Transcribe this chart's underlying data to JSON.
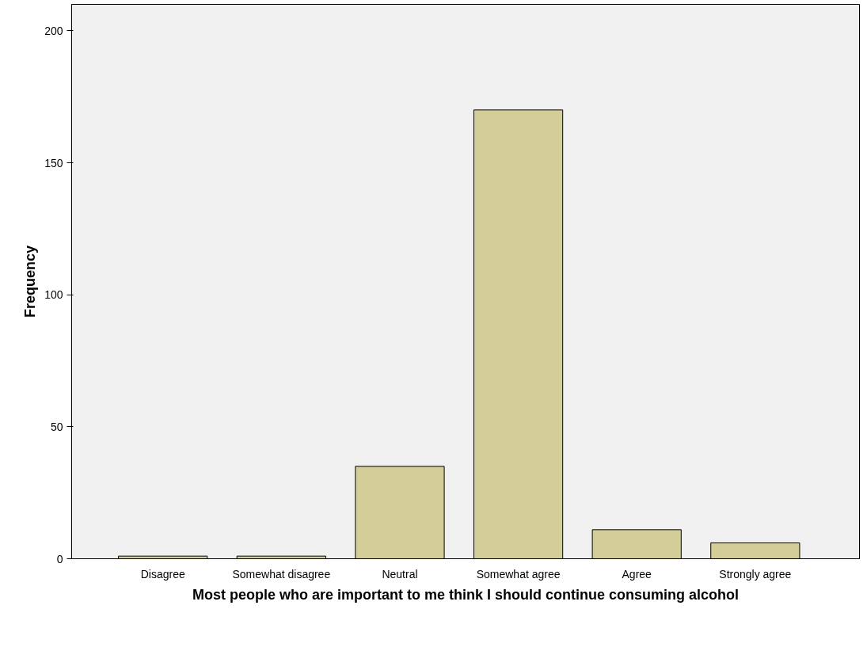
{
  "chart_data": {
    "type": "bar",
    "xlabel": "Most people who are important to me think I should continue consuming alcohol",
    "ylabel": "Frequency",
    "categories": [
      "Disagree",
      "Somewhat disagree",
      "Neutral",
      "Somewhat agree",
      "Agree",
      "Strongly agree"
    ],
    "values": [
      1,
      1,
      35,
      170,
      11,
      6
    ],
    "color": "#d3ce98",
    "ylim": [
      0,
      210
    ],
    "yticks": [
      0,
      50,
      100,
      150,
      200
    ],
    "grid": false
  }
}
